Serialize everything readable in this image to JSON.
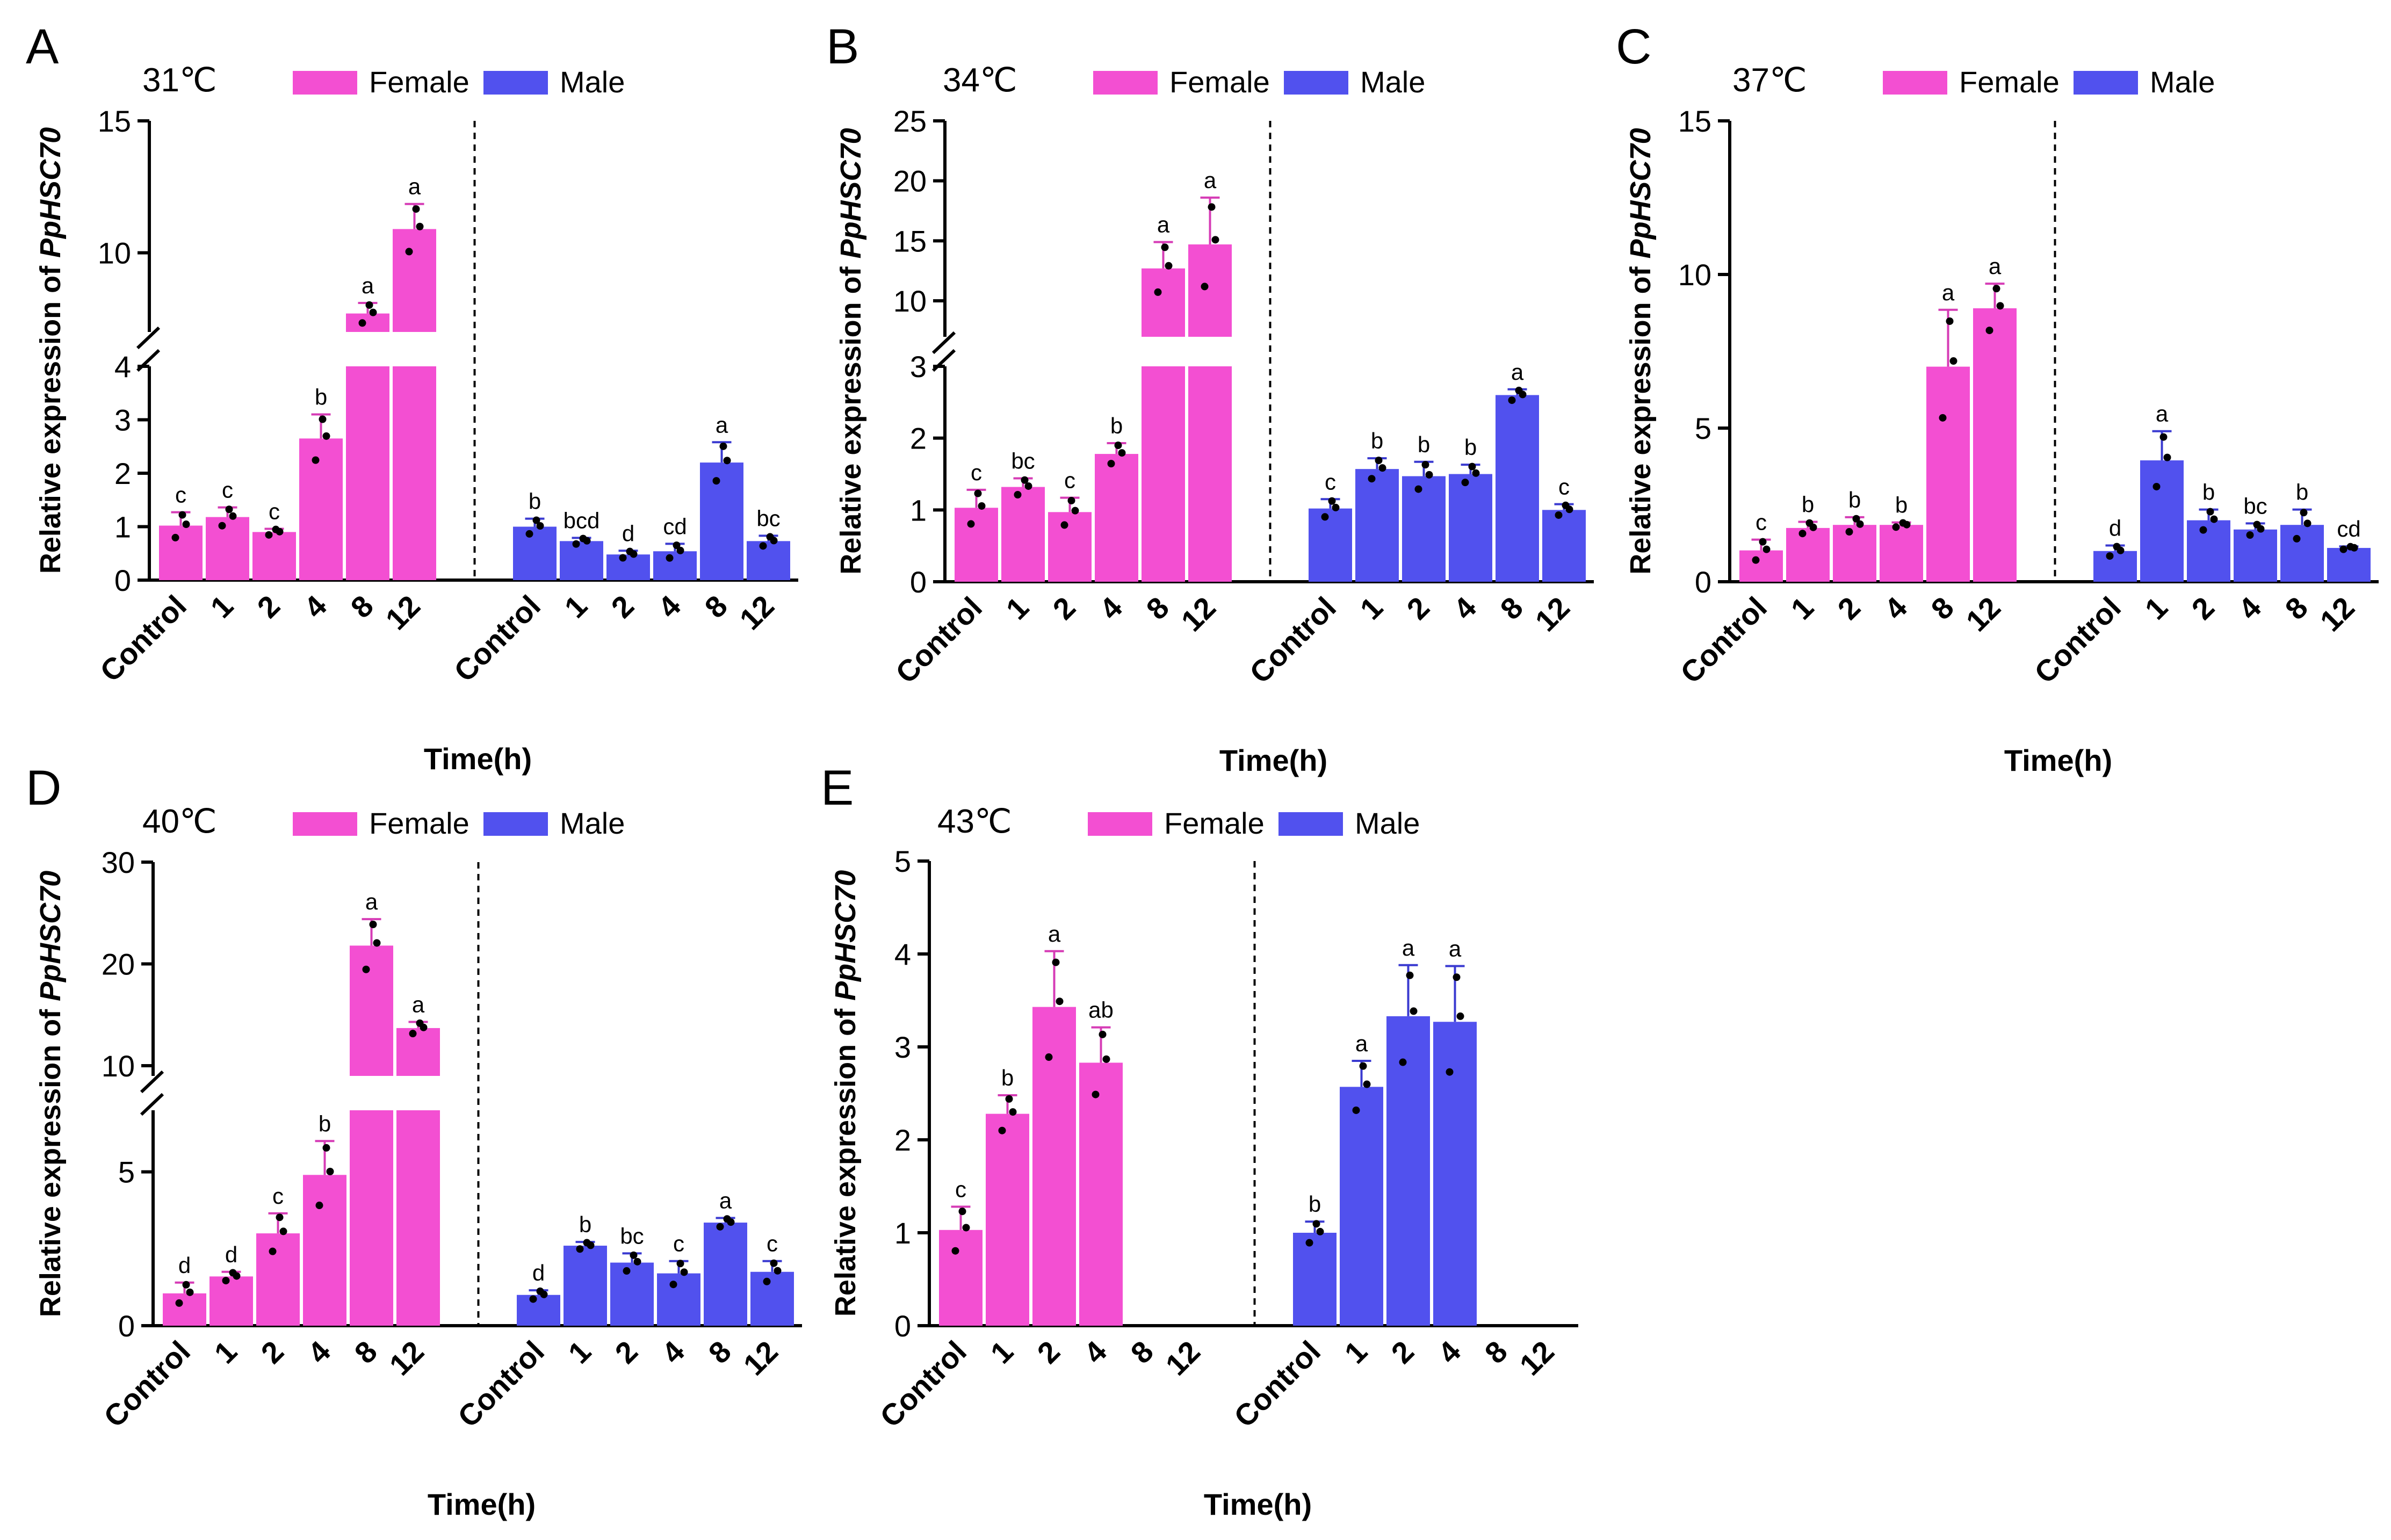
{
  "colors": {
    "female": "#f34fd2",
    "male": "#5151ee",
    "female_err": "#d63cb6",
    "male_err": "#3a3ad0"
  },
  "legend": {
    "female": "Female",
    "male": "Male"
  },
  "xlabel": "Time(h)",
  "ylabel_prefix": "Relative expression of ",
  "ylabel_gene": "PpHSC70",
  "chart_data": [
    {
      "panel": "A",
      "title": "31℃",
      "type": "bar",
      "categories": [
        "Control",
        "1",
        "2",
        "4",
        "8",
        "12"
      ],
      "broken_axis": {
        "lower": [
          0,
          4
        ],
        "upper": [
          7,
          15
        ]
      },
      "yticks_lower": [
        0,
        1,
        2,
        3,
        4
      ],
      "yticks_upper": [
        10,
        15
      ],
      "series": [
        {
          "name": "Female",
          "values": [
            1.02,
            1.18,
            0.9,
            2.65,
            7.7,
            10.9
          ],
          "errors": [
            0.25,
            0.18,
            0.06,
            0.45,
            0.4,
            0.95
          ],
          "letters": [
            "c",
            "c",
            "c",
            "b",
            "a",
            "a"
          ]
        },
        {
          "name": "Male",
          "values": [
            1.0,
            0.73,
            0.48,
            0.54,
            2.2,
            0.73
          ],
          "errors": [
            0.15,
            0.06,
            0.07,
            0.14,
            0.38,
            0.1
          ],
          "letters": [
            "b",
            "bcd",
            "d",
            "cd",
            "a",
            "bc"
          ]
        }
      ]
    },
    {
      "panel": "B",
      "title": "34℃",
      "type": "bar",
      "categories": [
        "Control",
        "1",
        "2",
        "4",
        "8",
        "12"
      ],
      "broken_axis": {
        "lower": [
          0,
          3
        ],
        "upper": [
          7,
          25
        ]
      },
      "yticks_lower": [
        0,
        1,
        2,
        3
      ],
      "yticks_upper": [
        10,
        15,
        20,
        25
      ],
      "series": [
        {
          "name": "Female",
          "values": [
            1.03,
            1.32,
            0.97,
            1.78,
            12.7,
            14.7
          ],
          "errors": [
            0.25,
            0.12,
            0.2,
            0.15,
            2.2,
            3.9
          ],
          "letters": [
            "c",
            "bc",
            "c",
            "b",
            "a",
            "a"
          ]
        },
        {
          "name": "Male",
          "values": [
            1.02,
            1.57,
            1.47,
            1.5,
            2.6,
            1.0
          ],
          "errors": [
            0.13,
            0.15,
            0.2,
            0.13,
            0.08,
            0.08
          ],
          "letters": [
            "c",
            "b",
            "b",
            "b",
            "a",
            "c"
          ]
        }
      ]
    },
    {
      "panel": "C",
      "title": "37℃",
      "type": "bar",
      "categories": [
        "Control",
        "1",
        "2",
        "4",
        "8",
        "12"
      ],
      "ylim": [
        0,
        15
      ],
      "yticks": [
        0,
        5,
        10,
        15
      ],
      "series": [
        {
          "name": "Female",
          "values": [
            1.02,
            1.75,
            1.85,
            1.85,
            7.0,
            8.9
          ],
          "errors": [
            0.35,
            0.2,
            0.25,
            0.08,
            1.85,
            0.8
          ],
          "letters": [
            "c",
            "b",
            "b",
            "b",
            "a",
            "a"
          ]
        },
        {
          "name": "Male",
          "values": [
            1.0,
            3.95,
            2.0,
            1.7,
            1.85,
            1.1
          ],
          "errors": [
            0.18,
            0.95,
            0.35,
            0.2,
            0.5,
            0.05
          ],
          "letters": [
            "d",
            "a",
            "b",
            "bc",
            "b",
            "cd"
          ]
        }
      ]
    },
    {
      "panel": "D",
      "title": "40℃",
      "type": "bar",
      "categories": [
        "Control",
        "1",
        "2",
        "4",
        "8",
        "12"
      ],
      "broken_axis": {
        "lower": [
          0,
          7
        ],
        "upper": [
          9,
          30
        ]
      },
      "yticks_lower": [
        0,
        5
      ],
      "yticks_upper": [
        10,
        20,
        30
      ],
      "series": [
        {
          "name": "Female",
          "values": [
            1.05,
            1.6,
            3.0,
            4.9,
            21.8,
            13.7
          ],
          "errors": [
            0.35,
            0.15,
            0.65,
            1.1,
            2.6,
            0.6
          ],
          "letters": [
            "d",
            "d",
            "c",
            "b",
            "a",
            "a"
          ]
        },
        {
          "name": "Male",
          "values": [
            1.0,
            2.6,
            2.05,
            1.7,
            3.35,
            1.75
          ],
          "errors": [
            0.15,
            0.12,
            0.3,
            0.4,
            0.15,
            0.35
          ],
          "letters": [
            "d",
            "b",
            "bc",
            "c",
            "a",
            "c"
          ]
        }
      ]
    },
    {
      "panel": "E",
      "title": "43℃",
      "type": "bar",
      "categories": [
        "Control",
        "1",
        "2",
        "4",
        "8",
        "12"
      ],
      "ylim": [
        0,
        5
      ],
      "yticks": [
        0,
        1,
        2,
        3,
        4,
        5
      ],
      "series": [
        {
          "name": "Female",
          "values": [
            1.03,
            2.28,
            3.43,
            2.83,
            null,
            null
          ],
          "errors": [
            0.25,
            0.2,
            0.6,
            0.38,
            null,
            null
          ],
          "letters": [
            "c",
            "b",
            "a",
            "ab",
            "",
            ""
          ]
        },
        {
          "name": "Male",
          "values": [
            1.0,
            2.57,
            3.33,
            3.27,
            null,
            null
          ],
          "errors": [
            0.12,
            0.28,
            0.55,
            0.6,
            null,
            null
          ],
          "letters": [
            "b",
            "a",
            "a",
            "a",
            "",
            ""
          ]
        }
      ]
    }
  ]
}
